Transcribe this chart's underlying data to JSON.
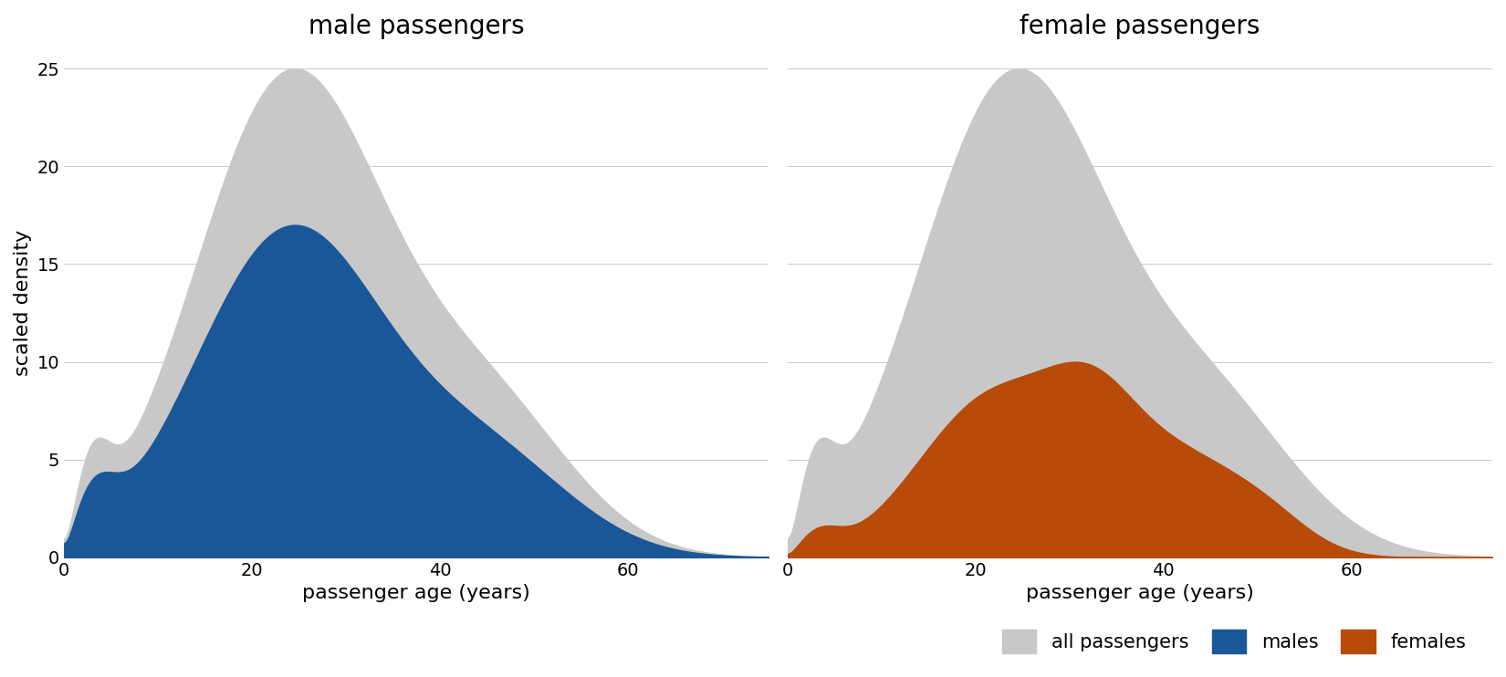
{
  "title_male": "male passengers",
  "title_female": "female passengers",
  "xlabel": "passenger age (years)",
  "ylabel": "scaled density",
  "ylim": [
    0,
    26
  ],
  "xlim": [
    0,
    75
  ],
  "yticks": [
    0,
    5,
    10,
    15,
    20,
    25
  ],
  "xticks": [
    0,
    20,
    40,
    60
  ],
  "color_all": "#c8c8c8",
  "color_male": "#1a5799",
  "color_female": "#b84a0a",
  "legend_labels": [
    "all passengers",
    "males",
    "females"
  ],
  "background": "#ffffff",
  "title_fontsize": 20,
  "label_fontsize": 16,
  "tick_fontsize": 14,
  "legend_fontsize": 15
}
